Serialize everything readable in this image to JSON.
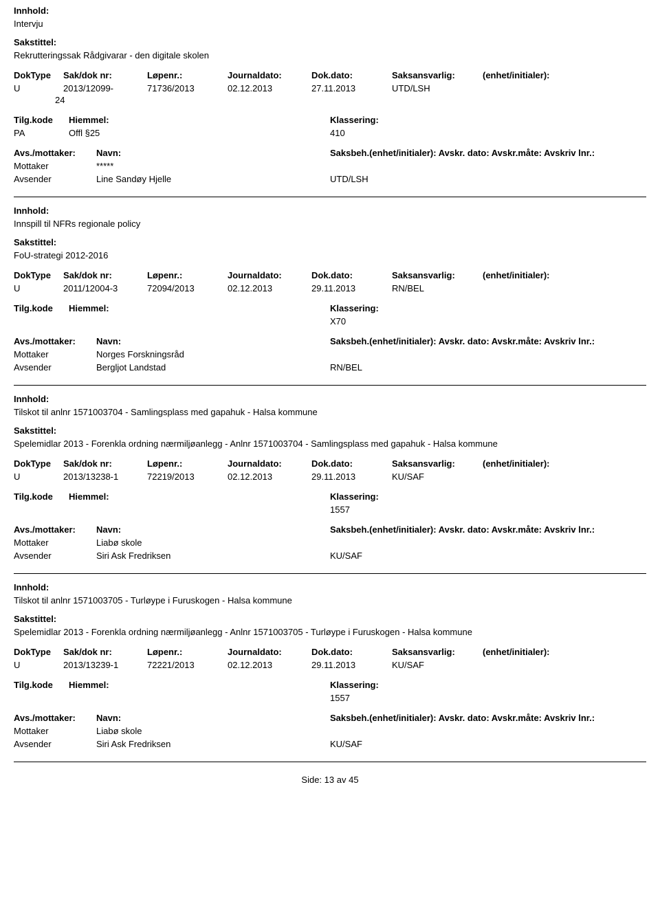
{
  "labels": {
    "innhold": "Innhold:",
    "sakstittel": "Sakstittel:",
    "doktype": "DokType",
    "sakdoknr": "Sak/dok nr:",
    "lopenr": "Løpenr.:",
    "journaldato": "Journaldato:",
    "dokdato": "Dok.dato:",
    "saksansvarlig": "Saksansvarlig:",
    "enhet": "(enhet/initialer):",
    "tilgkode": "Tilg.kode",
    "hjemmel": "Hiemmel:",
    "klassering": "Klassering:",
    "avsmottaker": "Avs./mottaker:",
    "navn": "Navn:",
    "saksbeh": "Saksbeh.(enhet/initialer): Avskr. dato:  Avskr.måte:  Avskriv lnr.:",
    "mottaker": "Mottaker",
    "avsender": "Avsender"
  },
  "records": [
    {
      "innhold": "Intervju",
      "sakstittel": "Rekrutteringssak Rådgivarar - den digitale skolen",
      "doktype": "U",
      "sakdoknr": "2013/12099-24",
      "sakdoknr_line1": "2013/12099-",
      "sakdoknr_line2": "24",
      "lopenr": "71736/2013",
      "journaldato": "02.12.2013",
      "dokdato": "27.11.2013",
      "saksansvarlig": "UTD/LSH",
      "tilgkode": "PA",
      "hjemmel": "Offl §25",
      "klassering": "410",
      "parties": [
        {
          "role": "Mottaker",
          "name": "*****",
          "code": ""
        },
        {
          "role": "Avsender",
          "name": "Line Sandøy Hjelle",
          "code": "UTD/LSH"
        }
      ]
    },
    {
      "innhold": "Innspill til NFRs regionale policy",
      "sakstittel": "FoU-strategi 2012-2016",
      "doktype": "U",
      "sakdoknr": "2011/12004-3",
      "lopenr": "72094/2013",
      "journaldato": "02.12.2013",
      "dokdato": "29.11.2013",
      "saksansvarlig": "RN/BEL",
      "tilgkode": "",
      "hjemmel": "",
      "klassering": "X70",
      "parties": [
        {
          "role": "Mottaker",
          "name": "Norges Forskningsråd",
          "code": ""
        },
        {
          "role": "Avsender",
          "name": "Bergljot Landstad",
          "code": "RN/BEL"
        }
      ]
    },
    {
      "innhold": "Tilskot til anlnr 1571003704 - Samlingsplass med gapahuk - Halsa kommune",
      "sakstittel": "Spelemidlar 2013 - Forenkla ordning nærmiljøanlegg - Anlnr 1571003704 - Samlingsplass med gapahuk - Halsa kommune",
      "doktype": "U",
      "sakdoknr": "2013/13238-1",
      "lopenr": "72219/2013",
      "journaldato": "02.12.2013",
      "dokdato": "29.11.2013",
      "saksansvarlig": "KU/SAF",
      "tilgkode": "",
      "hjemmel": "",
      "klassering": "1557",
      "parties": [
        {
          "role": "Mottaker",
          "name": "Liabø skole",
          "code": ""
        },
        {
          "role": "Avsender",
          "name": "Siri Ask Fredriksen",
          "code": "KU/SAF"
        }
      ]
    },
    {
      "innhold": "Tilskot til anlnr 1571003705 - Turløype i Furuskogen - Halsa kommune",
      "sakstittel": "Spelemidlar 2013 - Forenkla ordning nærmiljøanlegg - Anlnr 1571003705 - Turløype i Furuskogen - Halsa kommune",
      "doktype": "U",
      "sakdoknr": "2013/13239-1",
      "lopenr": "72221/2013",
      "journaldato": "02.12.2013",
      "dokdato": "29.11.2013",
      "saksansvarlig": "KU/SAF",
      "tilgkode": "",
      "hjemmel": "",
      "klassering": "1557",
      "parties": [
        {
          "role": "Mottaker",
          "name": "Liabø skole",
          "code": ""
        },
        {
          "role": "Avsender",
          "name": "Siri Ask Fredriksen",
          "code": "KU/SAF"
        }
      ]
    }
  ],
  "footer": {
    "label": "Side:",
    "page": "13",
    "of": "av",
    "total": "45"
  }
}
